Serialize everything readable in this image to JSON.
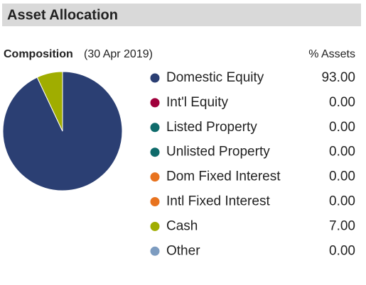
{
  "chart_data": {
    "type": "pie",
    "title": "Asset Allocation",
    "subtitle": "Composition",
    "date": "(30 Apr 2019)",
    "value_header": "% Assets",
    "categories": [
      "Domestic Equity",
      "Int'l Equity",
      "Listed Property",
      "Unlisted Property",
      "Dom Fixed Interest",
      "Intl Fixed Interest",
      "Cash",
      "Other"
    ],
    "values": [
      93,
      0,
      0,
      0,
      0,
      0,
      7,
      0
    ],
    "value_labels": [
      "93.00",
      "0.00",
      "0.00",
      "0.00",
      "0.00",
      "0.00",
      "7.00",
      "0.00"
    ],
    "colors": [
      "#2b3f73",
      "#a0003c",
      "#0f6b6b",
      "#0f6b6b",
      "#e8731f",
      "#e8731f",
      "#a0ad00",
      "#7d9cc0"
    ]
  }
}
